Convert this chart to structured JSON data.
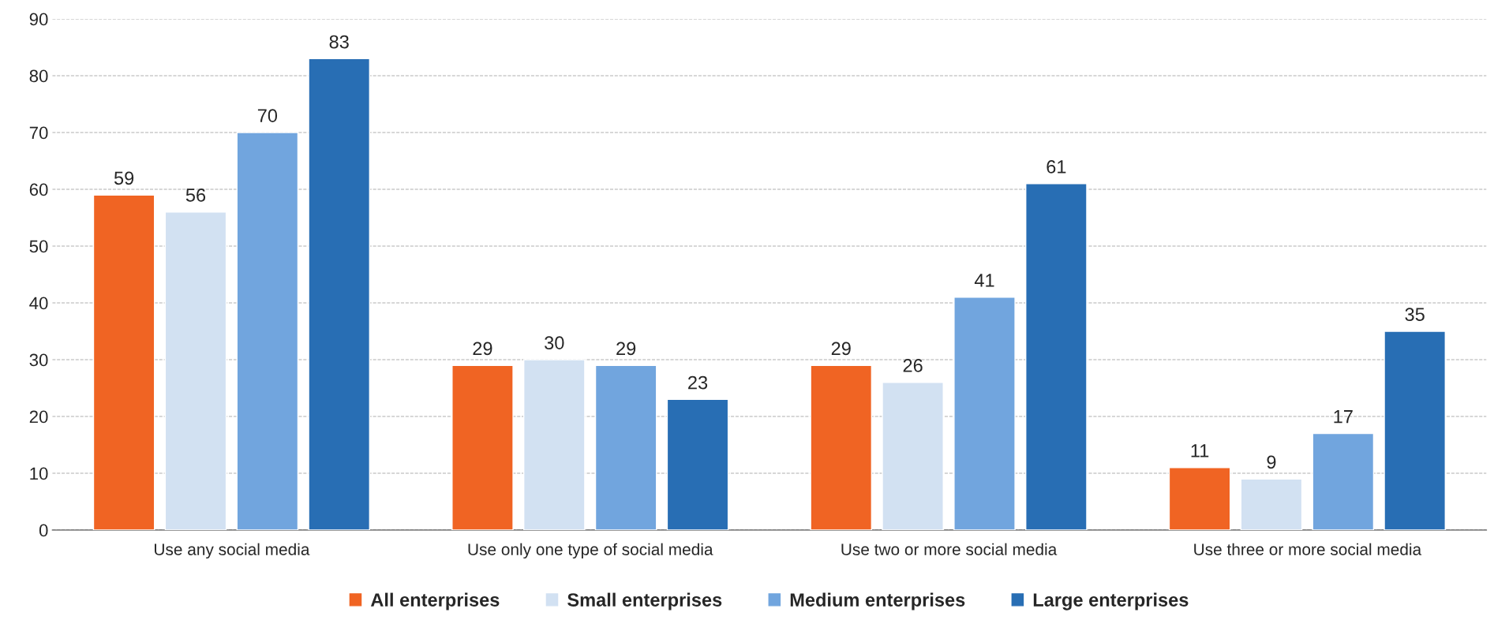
{
  "chart_data": {
    "type": "bar",
    "categories": [
      "Use any social media",
      "Use only one type of social media",
      "Use two or more social media",
      "Use three or more social media"
    ],
    "series": [
      {
        "name": "All enterprises",
        "color": "#f06423",
        "values": [
          59,
          29,
          29,
          11
        ]
      },
      {
        "name": "Small enterprises",
        "color": "#d2e1f2",
        "values": [
          56,
          30,
          26,
          9
        ]
      },
      {
        "name": "Medium enterprises",
        "color": "#71a5de",
        "values": [
          70,
          29,
          41,
          17
        ]
      },
      {
        "name": "Large enterprises",
        "color": "#286eb4",
        "values": [
          83,
          23,
          61,
          35
        ]
      }
    ],
    "ylim": [
      0,
      90
    ],
    "yticks": [
      0,
      10,
      20,
      30,
      40,
      50,
      60,
      70,
      80,
      90
    ],
    "grid": "y",
    "legend": "bottom",
    "data_labels": true
  }
}
